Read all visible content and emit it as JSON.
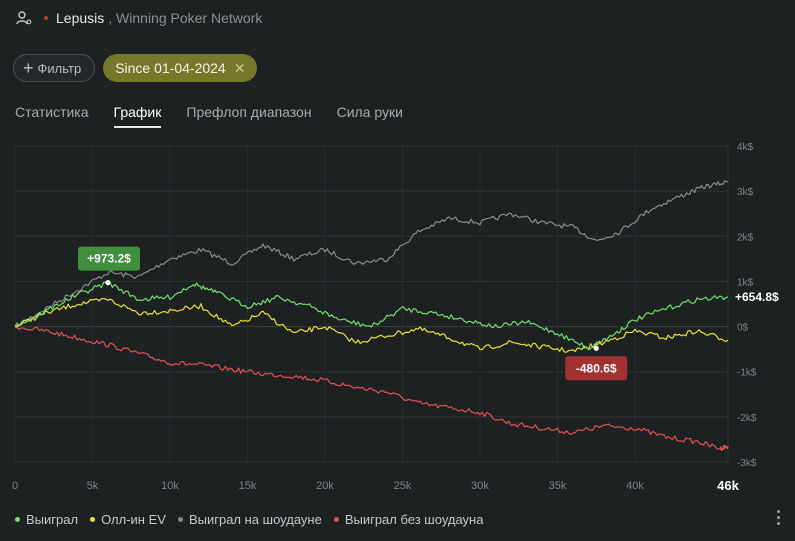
{
  "header": {
    "player_name": "Lepusis",
    "network_name": "Winning Poker Network",
    "status_color": "#c0392b"
  },
  "filters": {
    "filter_label": "Фильтр",
    "date_chip_label": "Since 01-04-2024"
  },
  "tabs": [
    {
      "label": "Статистика",
      "active": false
    },
    {
      "label": "График",
      "active": true
    },
    {
      "label": "Префлоп диапазон",
      "active": false
    },
    {
      "label": "Сила руки",
      "active": false
    }
  ],
  "chart_data": {
    "type": "line",
    "x_ticks": [
      "0",
      "5k",
      "10k",
      "15k",
      "20k",
      "25k",
      "30k",
      "35k",
      "40k"
    ],
    "x_end_label": "46k",
    "xlim": [
      0,
      46000
    ],
    "y_ticks": [
      "4k$",
      "3k$",
      "2k$",
      "1k$",
      "0$",
      "-1k$",
      "-2k$",
      "-3k$"
    ],
    "ylim": [
      -3000,
      4000
    ],
    "grid": true,
    "legend_position": "bottom-left",
    "annotations": [
      {
        "label": "+973.2$",
        "x": 6000,
        "y": 973.2,
        "color": "#3f8f3f"
      },
      {
        "label": "-480.6$",
        "x": 37500,
        "y": -480.6,
        "color": "#a23232"
      },
      {
        "label": "+654.8$",
        "x": 46000,
        "y": 654.8
      }
    ],
    "series": [
      {
        "name": "Выиграл",
        "color": "#6ee06e",
        "x": [
          0,
          2000,
          4000,
          6000,
          8000,
          10000,
          11500,
          13000,
          15000,
          17000,
          19000,
          21000,
          23000,
          25000,
          27000,
          29000,
          31000,
          33000,
          35000,
          37000,
          38500,
          40000,
          42000,
          44000,
          46000
        ],
        "y": [
          0,
          350,
          700,
          973,
          600,
          650,
          950,
          750,
          450,
          650,
          450,
          150,
          0,
          400,
          300,
          150,
          0,
          100,
          -150,
          -480,
          -200,
          150,
          400,
          600,
          655
        ]
      },
      {
        "name": "Олл-ин EV",
        "color": "#e8e03c",
        "x": [
          0,
          2000,
          4000,
          6000,
          8000,
          10000,
          12000,
          14000,
          16000,
          18000,
          20000,
          22000,
          24000,
          26000,
          28000,
          30000,
          32000,
          34000,
          36000,
          38000,
          40000,
          42000,
          44000,
          46000
        ],
        "y": [
          0,
          300,
          500,
          600,
          300,
          350,
          450,
          0,
          300,
          -150,
          0,
          -350,
          -200,
          -50,
          -250,
          -500,
          -350,
          -450,
          -550,
          -350,
          -100,
          -250,
          -100,
          -300
        ]
      },
      {
        "name": "Выиграл на шоудауне",
        "color": "#8a8a8a",
        "x": [
          0,
          2000,
          4000,
          6000,
          8000,
          10000,
          12000,
          14000,
          16000,
          18000,
          20000,
          22000,
          24000,
          26000,
          28000,
          30000,
          32000,
          34000,
          36000,
          37500,
          39000,
          41000,
          43000,
          44500,
          46000
        ],
        "y": [
          0,
          400,
          800,
          1200,
          1100,
          1500,
          1700,
          1400,
          1800,
          1500,
          1700,
          1400,
          1500,
          2100,
          2400,
          2300,
          2500,
          2300,
          2200,
          1900,
          2100,
          2600,
          2900,
          3100,
          3200
        ]
      },
      {
        "name": "Выиграл без шоудауна",
        "color": "#e05252",
        "x": [
          0,
          2000,
          4000,
          6000,
          8000,
          10000,
          12000,
          14000,
          16000,
          18000,
          20000,
          22000,
          24000,
          26000,
          28000,
          30000,
          32000,
          34000,
          36000,
          38000,
          40000,
          42000,
          44000,
          45500,
          46000
        ],
        "y": [
          0,
          -100,
          -250,
          -400,
          -600,
          -800,
          -850,
          -950,
          -1050,
          -1100,
          -1200,
          -1350,
          -1450,
          -1700,
          -1800,
          -1900,
          -2150,
          -2250,
          -2350,
          -2200,
          -2250,
          -2450,
          -2550,
          -2700,
          -2650
        ]
      }
    ]
  }
}
